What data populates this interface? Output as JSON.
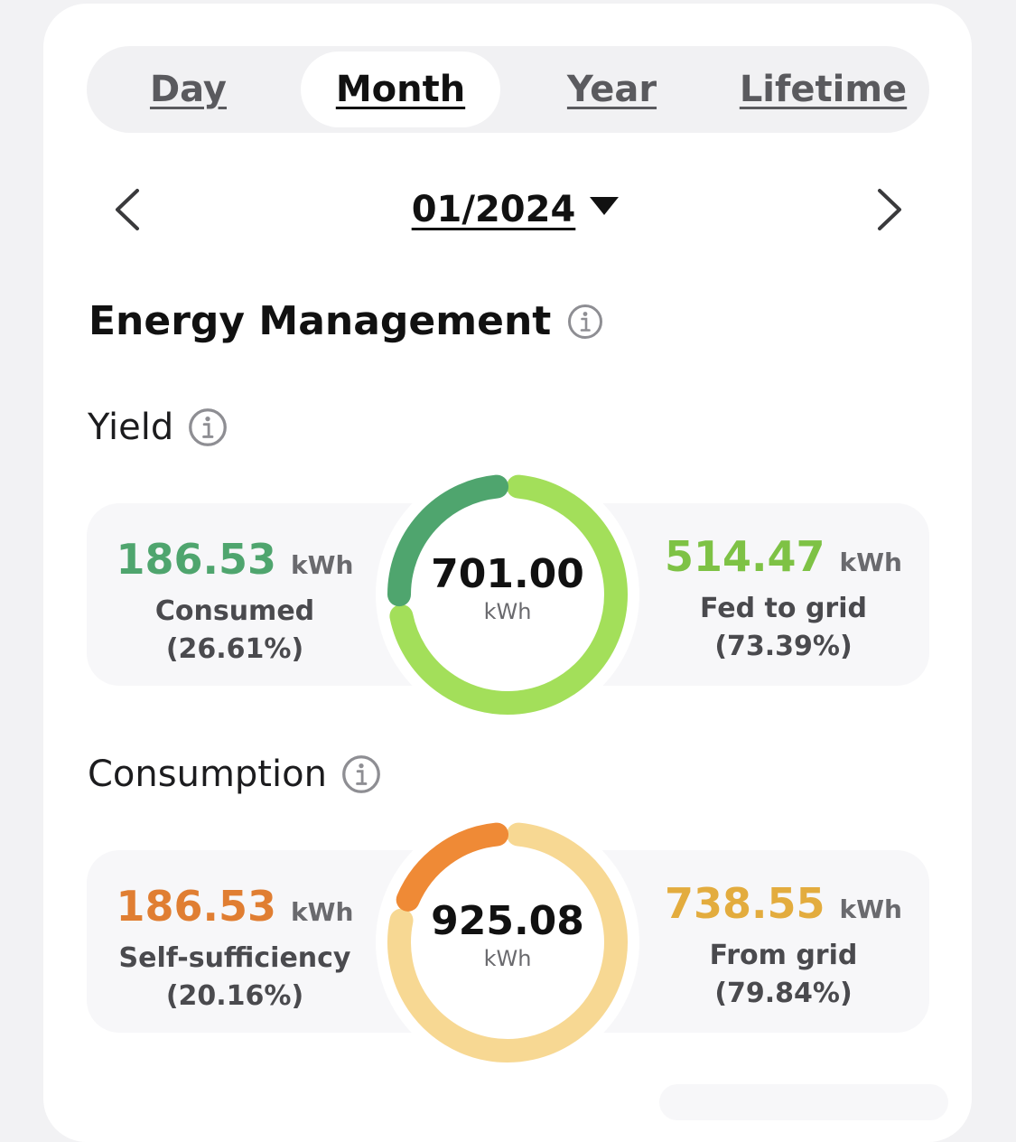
{
  "tabs": [
    {
      "label": "Day",
      "active": false
    },
    {
      "label": "Month",
      "active": true
    },
    {
      "label": "Year",
      "active": false
    },
    {
      "label": "Lifetime",
      "active": false
    }
  ],
  "date": {
    "value": "01/2024"
  },
  "energy_management": {
    "title": "Energy Management"
  },
  "yield": {
    "title": "Yield",
    "total": {
      "value": "701.00",
      "unit": "kWh"
    },
    "left": {
      "value": "186.53",
      "unit": "kWh",
      "label": "Consumed",
      "percent": "(26.61%)",
      "fraction": 0.2661
    },
    "right": {
      "value": "514.47",
      "unit": "kWh",
      "label": "Fed to grid",
      "percent": "(73.39%)",
      "fraction": 0.7339
    },
    "colors": {
      "left": "#4fa56e",
      "right": "#a3df5a"
    }
  },
  "consumption": {
    "title": "Consumption",
    "total": {
      "value": "925.08",
      "unit": "kWh"
    },
    "left": {
      "value": "186.53",
      "unit": "kWh",
      "label": "Self-sufficiency",
      "percent": "(20.16%)",
      "fraction": 0.2016
    },
    "right": {
      "value": "738.55",
      "unit": "kWh",
      "label": "From grid",
      "percent": "(79.84%)",
      "fraction": 0.7984
    },
    "colors": {
      "left": "#ef8a36",
      "right": "#f7d893"
    }
  },
  "icons": {
    "prev": "chevron-left-icon",
    "next": "chevron-right-icon",
    "info": "info-circle-icon",
    "dropdown": "caret-down-icon"
  }
}
